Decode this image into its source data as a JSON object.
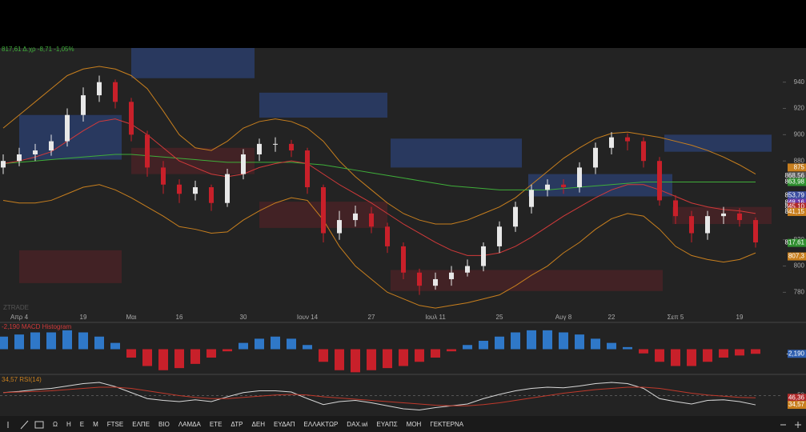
{
  "chart_data": [
    {
      "type": "candlestick",
      "title": "817,61 Δ.χρ -8,71 -1,05%",
      "watermark": "ZTRADE",
      "categories": [
        null,
        "Απρ 4",
        null,
        null,
        null,
        "19",
        null,
        null,
        "Μαι",
        null,
        null,
        "16",
        null,
        null,
        null,
        "30",
        null,
        null,
        null,
        "Ιουν 14",
        null,
        null,
        null,
        "27",
        null,
        null,
        null,
        "Ιουλ 11",
        null,
        null,
        null,
        "25",
        null,
        null,
        null,
        "Αυγ 8",
        null,
        null,
        "22",
        null,
        null,
        null,
        "Σεπ 5",
        null,
        null,
        null,
        "19",
        null
      ],
      "open": [
        875,
        880,
        885,
        888,
        895,
        915,
        930,
        940,
        925,
        900,
        875,
        862,
        855,
        860,
        848,
        870,
        885,
        893,
        893,
        888,
        860,
        825,
        835,
        840,
        830,
        815,
        795,
        785,
        790,
        795,
        800,
        815,
        830,
        845,
        858,
        862,
        860,
        875,
        890,
        898,
        895,
        880,
        850,
        838,
        825,
        838,
        840,
        835
      ],
      "high": [
        885,
        890,
        893,
        900,
        920,
        936,
        945,
        942,
        928,
        903,
        880,
        866,
        865,
        862,
        874,
        889,
        897,
        898,
        896,
        890,
        862,
        842,
        846,
        845,
        833,
        818,
        798,
        795,
        800,
        805,
        818,
        834,
        849,
        862,
        866,
        866,
        879,
        894,
        902,
        901,
        898,
        883,
        854,
        842,
        842,
        845,
        844,
        837
      ],
      "low": [
        870,
        876,
        880,
        884,
        891,
        910,
        925,
        920,
        895,
        868,
        855,
        848,
        850,
        842,
        845,
        866,
        880,
        887,
        883,
        855,
        818,
        820,
        830,
        825,
        810,
        790,
        778,
        782,
        785,
        792,
        796,
        810,
        826,
        840,
        853,
        855,
        856,
        870,
        885,
        888,
        875,
        846,
        832,
        818,
        820,
        832,
        830,
        814
      ],
      "close": [
        880,
        885,
        888,
        895,
        915,
        930,
        940,
        925,
        900,
        875,
        862,
        855,
        860,
        848,
        870,
        885,
        893,
        893,
        888,
        860,
        825,
        835,
        840,
        830,
        815,
        795,
        785,
        790,
        795,
        800,
        815,
        830,
        845,
        858,
        862,
        860,
        875,
        890,
        898,
        895,
        880,
        850,
        838,
        825,
        838,
        840,
        835,
        818
      ],
      "up_color": "#e8e8e8",
      "down_color": "#c8202a",
      "lines": [
        {
          "color": "#c87f1e",
          "values": [
            905,
            915,
            925,
            935,
            945,
            950,
            952,
            950,
            945,
            935,
            918,
            900,
            890,
            888,
            895,
            905,
            910,
            912,
            910,
            905,
            895,
            880,
            868,
            858,
            848,
            840,
            835,
            832,
            832,
            835,
            840,
            845,
            852,
            862,
            872,
            882,
            890,
            897,
            901,
            902,
            900,
            898,
            895,
            892,
            888,
            883,
            877,
            870
          ]
        },
        {
          "color": "#c87f1e",
          "values": [
            850,
            848,
            848,
            850,
            855,
            860,
            862,
            858,
            852,
            845,
            838,
            830,
            828,
            825,
            826,
            835,
            842,
            848,
            852,
            850,
            835,
            815,
            800,
            790,
            780,
            775,
            770,
            768,
            770,
            772,
            775,
            778,
            785,
            793,
            800,
            810,
            818,
            828,
            836,
            840,
            838,
            828,
            815,
            808,
            805,
            803,
            805,
            810
          ]
        },
        {
          "color": "#3fae3a",
          "values": [
            878,
            879,
            880,
            881,
            882,
            883,
            884,
            885,
            885,
            884,
            883,
            882,
            881,
            880,
            879,
            879,
            879,
            879,
            879,
            878,
            877,
            875,
            873,
            871,
            869,
            867,
            865,
            863,
            861,
            860,
            859,
            858,
            858,
            858,
            858,
            859,
            860,
            861,
            862,
            863,
            864,
            864,
            864,
            864,
            864,
            864,
            864,
            864
          ]
        },
        {
          "color": "#d23a3a",
          "values": [
            878,
            880,
            883,
            887,
            895,
            903,
            910,
            912,
            908,
            900,
            890,
            880,
            875,
            870,
            868,
            870,
            875,
            878,
            880,
            878,
            870,
            862,
            855,
            848,
            840,
            832,
            825,
            818,
            812,
            808,
            808,
            810,
            815,
            822,
            830,
            838,
            845,
            852,
            858,
            862,
            862,
            858,
            853,
            848,
            845,
            843,
            842,
            840
          ]
        }
      ],
      "zones": [
        {
          "start": 8,
          "end": 15.7,
          "low": 943,
          "high": 966,
          "color": "#2b3f6e"
        },
        {
          "start": 1,
          "end": 7.4,
          "low": 881,
          "high": 915,
          "color": "#2b3f6e"
        },
        {
          "start": 16,
          "end": 24,
          "low": 913,
          "high": 932,
          "color": "#2b3f6e"
        },
        {
          "start": 24.2,
          "end": 32.4,
          "low": 875,
          "high": 897,
          "color": "#2b3f6e"
        },
        {
          "start": 41.3,
          "end": 48,
          "low": 887,
          "high": 900,
          "color": "#2b3f6e"
        },
        {
          "start": 32.8,
          "end": 41.8,
          "low": 853,
          "high": 870,
          "color": "#2b3f6e"
        },
        {
          "start": 1,
          "end": 7.4,
          "low": 787,
          "high": 812,
          "color": "#4a2226"
        },
        {
          "start": 24.2,
          "end": 41.2,
          "low": 781,
          "high": 797,
          "color": "#4a2226"
        },
        {
          "start": 16,
          "end": 24,
          "low": 829,
          "high": 849,
          "color": "#4a2226"
        },
        {
          "start": 8,
          "end": 15.7,
          "low": 870,
          "high": 890,
          "color": "#4a2226"
        },
        {
          "start": 41.8,
          "end": 48,
          "low": 832,
          "high": 845,
          "color": "#4a2226"
        }
      ],
      "ylim": [
        765,
        966
      ],
      "yticks": [
        780,
        800,
        820,
        880,
        900,
        920,
        940
      ],
      "badges": [
        {
          "value": 875,
          "label": "875",
          "color": "#c87f1e"
        },
        {
          "value": 868.56,
          "label": "868,56",
          "color": "#555"
        },
        {
          "value": 863.98,
          "label": "863,98",
          "color": "#2f8f2f"
        },
        {
          "value": 853.79,
          "label": "853,79",
          "color": "#3b4ea0"
        },
        {
          "value": 848.16,
          "label": "848,16",
          "color": "#6a3aa8"
        },
        {
          "value": 845.1,
          "label": "845,10",
          "color": "#b02a2a"
        },
        {
          "value": 841.15,
          "label": "841,15",
          "color": "#c87f1e"
        },
        {
          "value": 817.61,
          "label": "817,61",
          "color": "#2f8f2f"
        },
        {
          "value": 807.3,
          "label": "807,3",
          "color": "#c87f1e"
        }
      ]
    },
    {
      "type": "bar",
      "title": "-2,190 MACD Histogram",
      "values": [
        6,
        7,
        8,
        8,
        9,
        8,
        6,
        3,
        -4,
        -8,
        -10,
        -9,
        -7,
        -4,
        -1,
        3,
        5,
        6,
        5,
        2,
        -6,
        -10,
        -11,
        -10,
        -9,
        -8,
        -6,
        -4,
        -1,
        2,
        4,
        6,
        8,
        9,
        9,
        8,
        7,
        5,
        3,
        1,
        -2,
        -6,
        -8,
        -8,
        -6,
        -4,
        -3,
        -2.19
      ],
      "pos_color": "#2f78c8",
      "neg_color": "#c8202a",
      "ylim": [
        -12,
        12
      ],
      "badges": [
        {
          "value": -2.19,
          "label": "-2,190",
          "color": "#2f5fb0"
        }
      ]
    },
    {
      "type": "line",
      "title": "34,57 RSI(14)",
      "lines": [
        {
          "color": "#d8d8d8",
          "values": [
            55,
            57,
            60,
            62,
            66,
            70,
            72,
            65,
            55,
            45,
            42,
            40,
            43,
            40,
            48,
            55,
            58,
            58,
            56,
            45,
            35,
            40,
            42,
            38,
            33,
            28,
            26,
            30,
            33,
            36,
            45,
            52,
            58,
            62,
            64,
            63,
            66,
            70,
            72,
            70,
            62,
            45,
            40,
            36,
            42,
            43,
            40,
            34.57
          ]
        },
        {
          "color": "#c0392b",
          "values": [
            55,
            56,
            57,
            58,
            60,
            62,
            64,
            64,
            62,
            58,
            54,
            50,
            47,
            45,
            45,
            47,
            49,
            51,
            52,
            51,
            48,
            46,
            44,
            42,
            40,
            38,
            36,
            34,
            33,
            33,
            35,
            38,
            42,
            46,
            50,
            54,
            57,
            60,
            62,
            64,
            64,
            62,
            58,
            54,
            51,
            49,
            47,
            46.36
          ]
        }
      ],
      "ylim": [
        20,
        80
      ],
      "yticks": [
        50
      ],
      "badges": [
        {
          "value": 46.36,
          "label": "46,36",
          "color": "#b02a2a"
        },
        {
          "value": 34.57,
          "label": "34,57",
          "color": "#c87f1e"
        }
      ]
    }
  ],
  "toolbar": {
    "items": [
      "Ω",
      "Η",
      "Ε",
      "Μ",
      "FTSE",
      "ΕΛΠΕ",
      "ΒΙΟ",
      "ΛΑΜΔΑ",
      "ΕΤΕ",
      "ΔΤΡ",
      "ΔΕΗ",
      "ΕΥΔΑΠ",
      "ΕΛΛΑΚΤΩΡ",
      "DAX.wi",
      "ΕΥΑΠΣ",
      "ΜΟΗ",
      "ΓΕΚΤΕΡΝΑ"
    ]
  }
}
